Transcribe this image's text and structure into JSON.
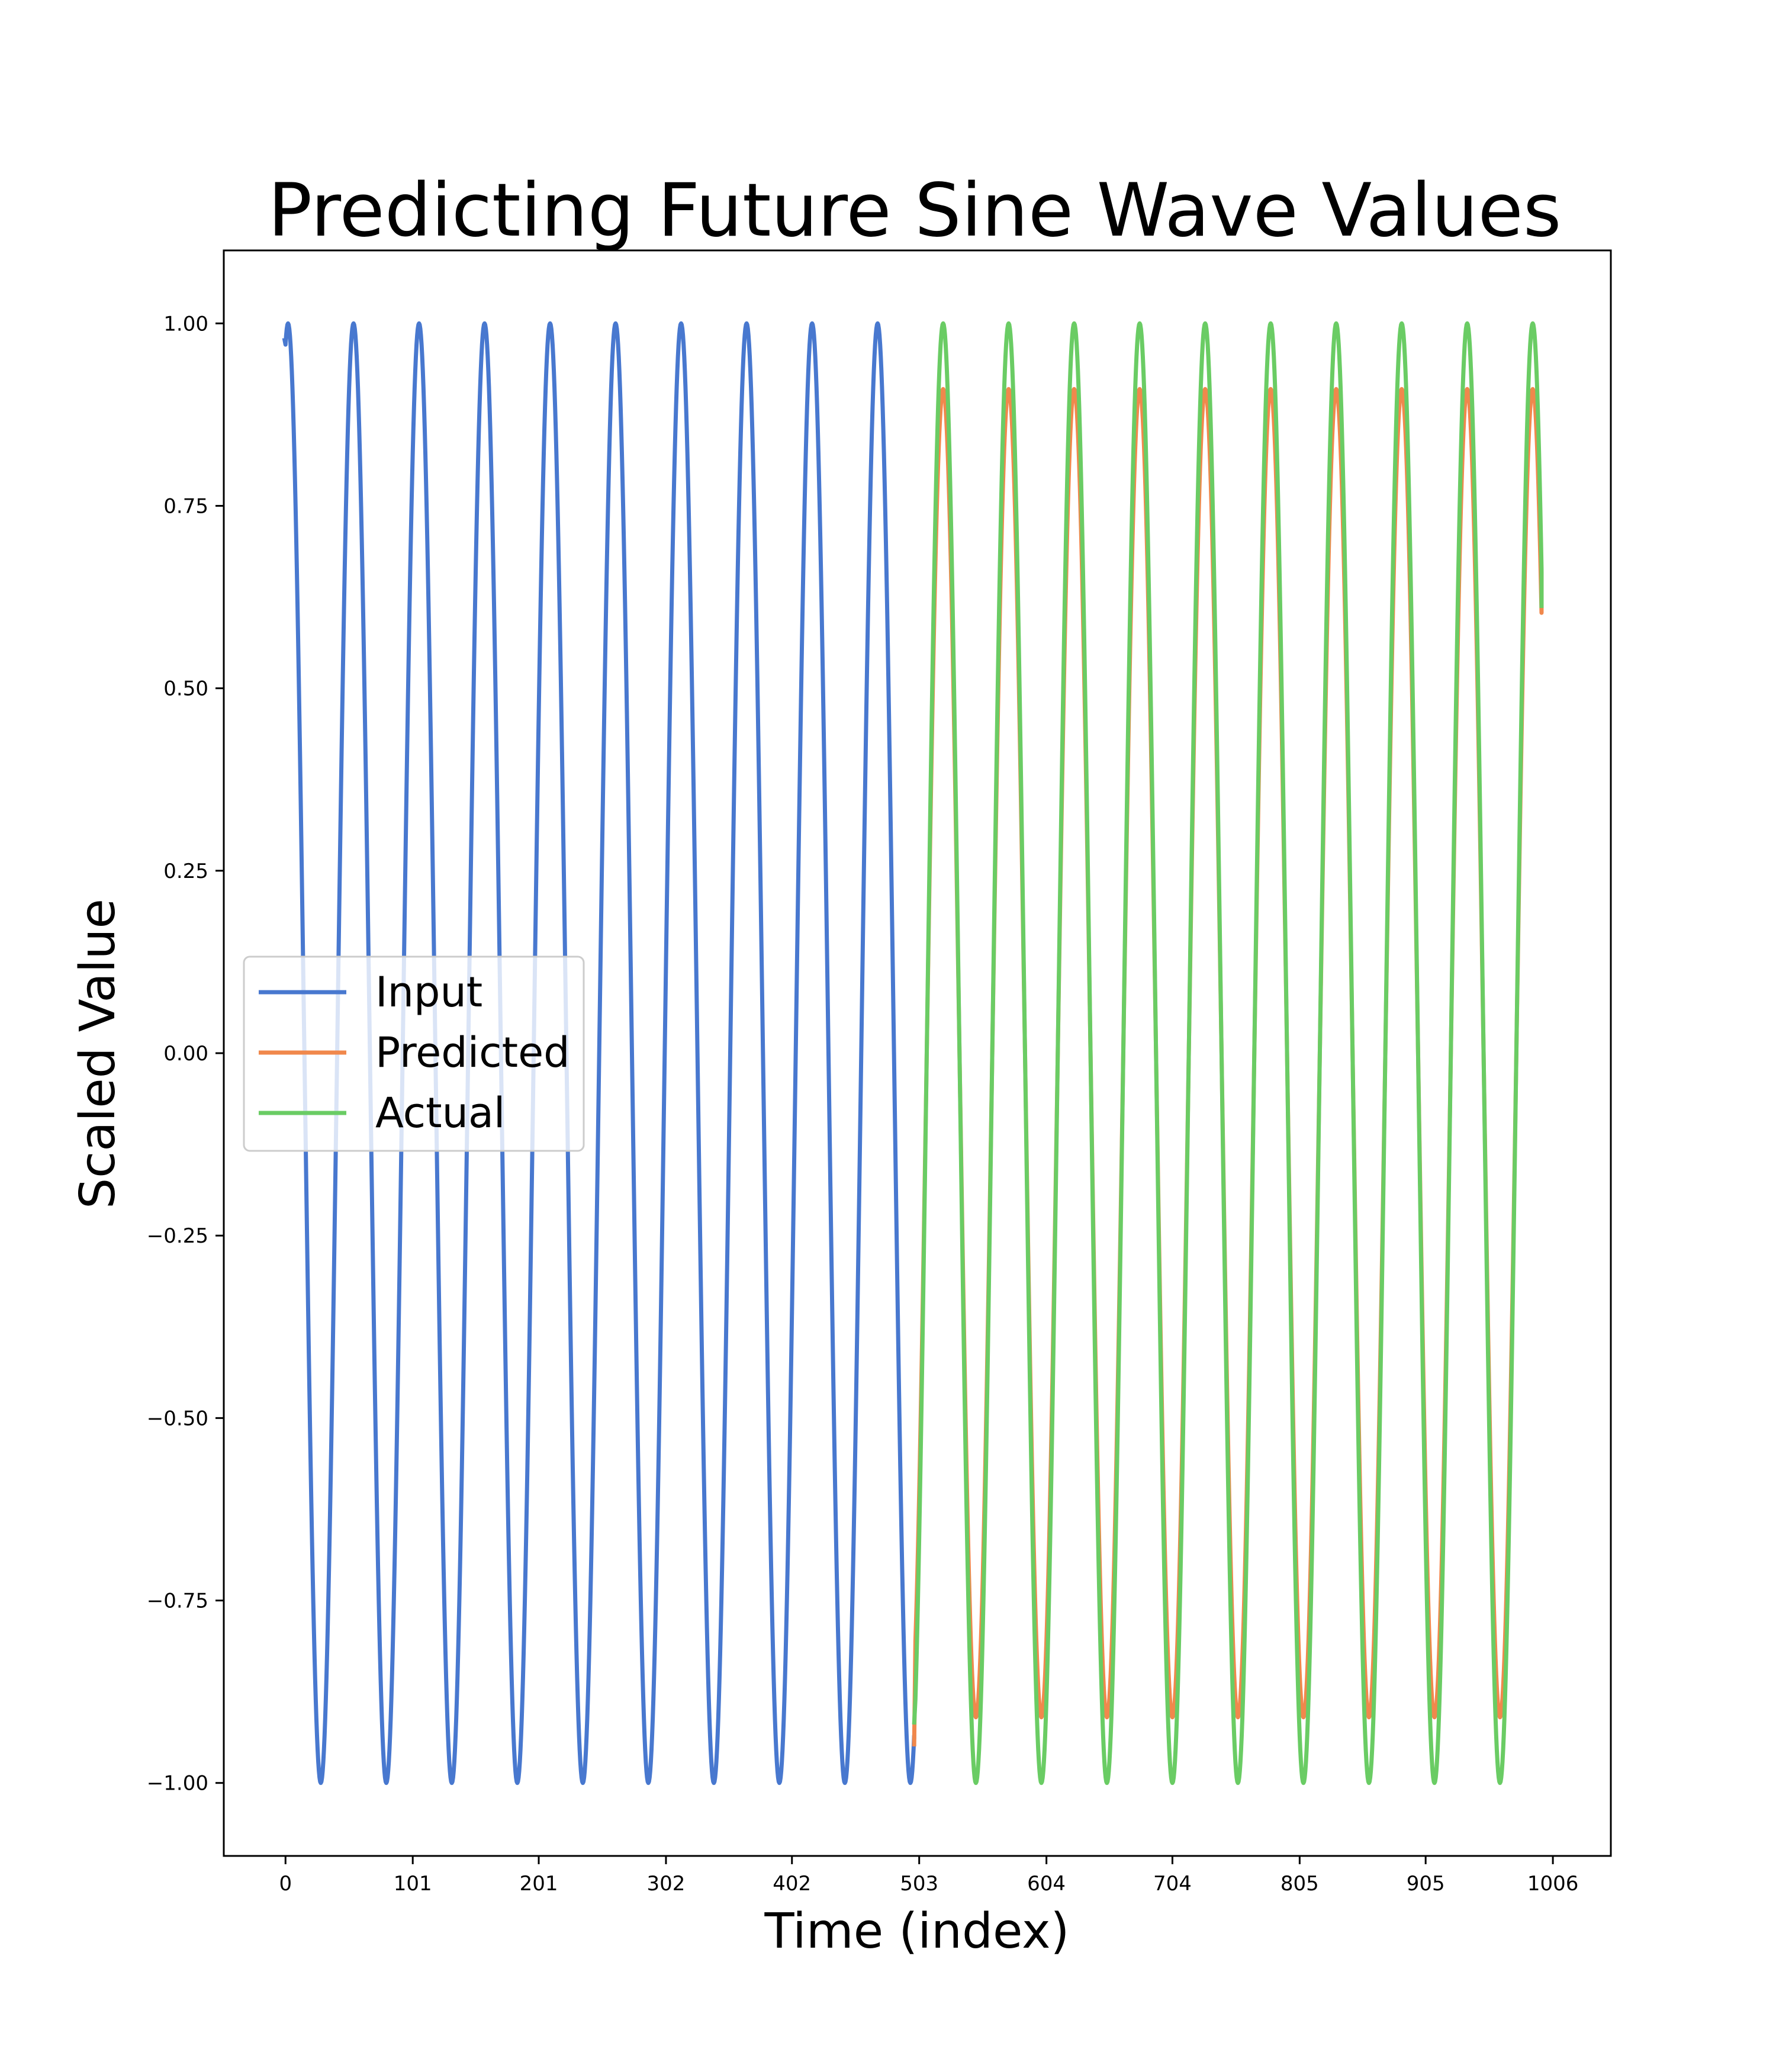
{
  "chart_data": {
    "type": "line",
    "title": "Predicting Future Sine Wave Values",
    "xlabel": "Time (index)",
    "ylabel": "Scaled Value",
    "xlim": [
      -49,
      1052
    ],
    "ylim": [
      -1.1,
      1.1
    ],
    "x_ticks": [
      0,
      101,
      201,
      302,
      402,
      503,
      604,
      704,
      805,
      905,
      1006
    ],
    "x_tick_labels": [
      "0",
      "101",
      "201",
      "302",
      "402",
      "503",
      "604",
      "704",
      "805",
      "905",
      "1006"
    ],
    "y_ticks": [
      -1.0,
      -0.75,
      -0.5,
      -0.25,
      0.0,
      0.25,
      0.5,
      0.75,
      1.0
    ],
    "y_tick_labels": [
      "−1.00",
      "−0.75",
      "−0.50",
      "−0.25",
      "0.00",
      "0.25",
      "0.50",
      "0.75",
      "1.00"
    ],
    "grid": false,
    "legend_position": "center-left",
    "series": [
      {
        "name": "Input",
        "color": "#4878cf",
        "x_range": [
          0,
          499
        ],
        "start_value": 0.98,
        "period": 52,
        "amplitude": 1.0,
        "peak_at": 2,
        "end_value": -0.94
      },
      {
        "name": "Predicted",
        "color": "#f0884c",
        "x_range": [
          500,
          997
        ],
        "start_value": -0.95,
        "period": 52,
        "amplitude": 0.91,
        "peak_at": 522,
        "end_value": 0.66
      },
      {
        "name": "Actual",
        "color": "#6acc64",
        "x_range": [
          500,
          997
        ],
        "start_value": -0.92,
        "period": 52,
        "amplitude": 1.0,
        "peak_at": 522,
        "end_value": 0.61
      }
    ]
  }
}
